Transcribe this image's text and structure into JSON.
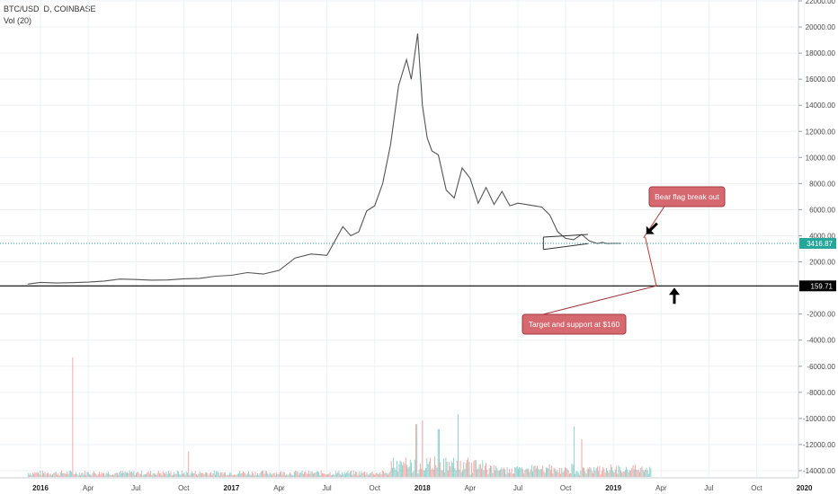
{
  "legend": {
    "symbol": "BTC/USD, D, COINBASE",
    "indicator": "Vol (20)"
  },
  "colors": {
    "up": "#26a69a",
    "down": "#ef5350",
    "grid": "#eef1f4",
    "current_line": "#26a69a",
    "target_line": "#000000",
    "callout_fill": "#d6686f",
    "callout_stroke": "#a33a40",
    "price_line": "#555555"
  },
  "chart_data": {
    "type": "line",
    "title": "BTC/USD, D, COINBASE",
    "xlabel": "",
    "ylabel": "",
    "x_unit": "months since Jan 2016",
    "ylim": [
      -14500,
      22000
    ],
    "y_ticks": [
      "22000.00",
      "20000.00",
      "18000.00",
      "16000.00",
      "14000.00",
      "12000.00",
      "10000.00",
      "8000.00",
      "6000.00",
      "4000.00",
      "2000.00",
      "-2000.00",
      "-4000.00",
      "-6000.00",
      "-8000.00",
      "-10000.00",
      "-12000.00",
      "-14000.00"
    ],
    "x_ticks": [
      {
        "label": "2016",
        "year": true
      },
      {
        "label": "Apr"
      },
      {
        "label": "Jul"
      },
      {
        "label": "Oct"
      },
      {
        "label": "2017",
        "year": true
      },
      {
        "label": "Apr"
      },
      {
        "label": "Jul"
      },
      {
        "label": "Oct"
      },
      {
        "label": "2018",
        "year": true
      },
      {
        "label": "Apr"
      },
      {
        "label": "Jul"
      },
      {
        "label": "Oct"
      },
      {
        "label": "2019",
        "year": true
      },
      {
        "label": "Apr"
      },
      {
        "label": "Jul"
      },
      {
        "label": "Oct"
      },
      {
        "label": "2020",
        "year": true
      }
    ],
    "price_series": {
      "name": "BTC/USD",
      "x_months": [
        -0.8,
        0,
        1,
        2,
        3,
        4,
        5,
        6,
        7,
        8,
        9,
        10,
        11,
        12,
        13,
        14,
        15,
        16,
        17,
        18,
        19,
        19.5,
        20,
        20.5,
        21,
        21.5,
        22,
        22.5,
        23,
        23.3,
        23.7,
        24,
        24.3,
        24.6,
        25,
        25.5,
        26,
        26.5,
        27,
        27.5,
        28,
        28.5,
        29,
        29.5,
        30,
        30.5,
        31,
        31.5,
        32,
        32.5,
        33,
        33.5,
        34,
        34.5,
        35,
        35.3,
        35.6,
        36,
        36.5,
        37,
        37.5,
        38,
        38.5
      ],
      "values": [
        300,
        430,
        380,
        410,
        450,
        530,
        680,
        650,
        600,
        610,
        700,
        740,
        900,
        970,
        1180,
        1070,
        1350,
        2300,
        2600,
        2500,
        4700,
        4000,
        4300,
        5900,
        6300,
        8000,
        11000,
        15500,
        17500,
        16000,
        19500,
        14000,
        11500,
        10500,
        10200,
        7500,
        6900,
        9200,
        8400,
        6500,
        7700,
        6400,
        7400,
        6300,
        6500,
        6400,
        6300,
        6200,
        5600,
        4300,
        3800,
        3700,
        4100,
        3600,
        3400,
        3500,
        3400,
        3420,
        3417,
        null,
        null,
        null,
        null
      ]
    },
    "current_price": {
      "label": "3416.87",
      "value": 3416.87
    },
    "target_level": {
      "label": "159.71",
      "value": 159.71
    },
    "projection": [
      {
        "x_months": 38,
        "value": 3900
      },
      {
        "x_months": 38.7,
        "value": 159.71
      }
    ],
    "bear_flag": {
      "upper": [
        {
          "x_months": 31.6,
          "value": 3900
        },
        {
          "x_months": 34.4,
          "value": 4100
        }
      ],
      "lower": [
        {
          "x_months": 31.6,
          "value": 2950
        },
        {
          "x_months": 34.4,
          "value": 3400
        }
      ]
    },
    "annotations": [
      {
        "text": "Bear flag break out",
        "at_x_months": 37.9,
        "at_value": 3850,
        "arrow": "down-left"
      },
      {
        "text": "Target and support at $160",
        "at_x_months": 38.7,
        "at_value": 159.71,
        "arrow": "up"
      }
    ],
    "volume_series": {
      "name": "Vol (20)",
      "note": "relative volume bars along the bottom pane",
      "spikes": [
        {
          "x_months": 2.0,
          "value": 0.95
        },
        {
          "x_months": 9.3,
          "value": 0.2
        },
        {
          "x_months": 24.0,
          "value": 0.45
        },
        {
          "x_months": 25.0,
          "value": 0.38
        },
        {
          "x_months": 26.2,
          "value": 0.5
        },
        {
          "x_months": 23.6,
          "value": 0.42
        },
        {
          "x_months": 33.5,
          "value": 0.4
        },
        {
          "x_months": 34.0,
          "value": 0.3
        }
      ]
    },
    "grid": true,
    "legend_position": "top-left"
  }
}
